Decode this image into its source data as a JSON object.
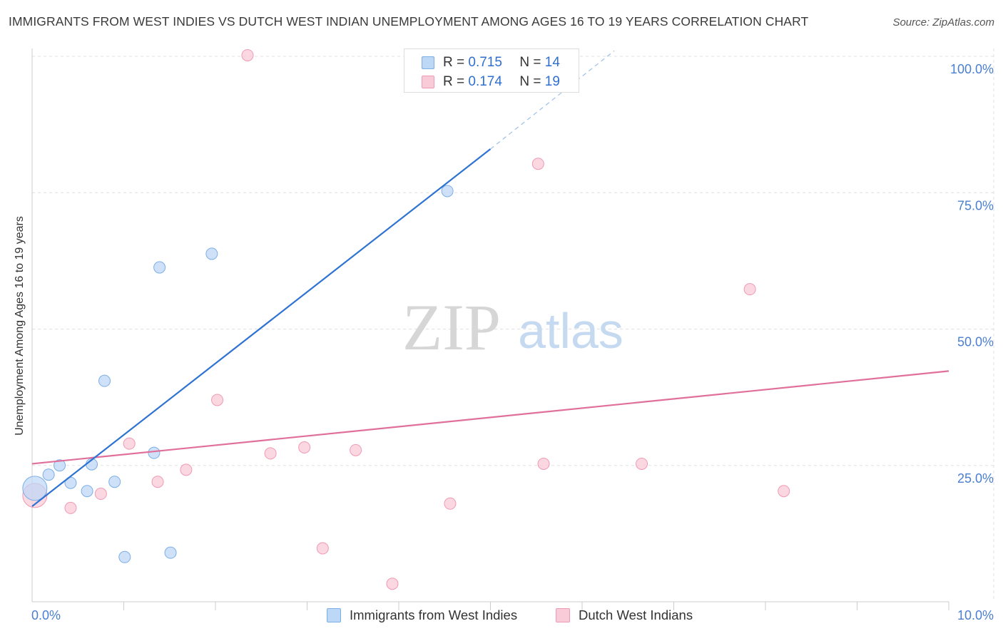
{
  "title": "IMMIGRANTS FROM WEST INDIES VS DUTCH WEST INDIAN UNEMPLOYMENT AMONG AGES 16 TO 19 YEARS CORRELATION CHART",
  "source": "Source: ZipAtlas.com",
  "watermark": {
    "zip": "ZIP",
    "atlas": "atlas"
  },
  "legend": {
    "series1": {
      "r_label": "R = ",
      "r_value": "0.715",
      "n_label": "N = ",
      "n_value": "14"
    },
    "series2": {
      "r_label": "R = ",
      "r_value": "0.174",
      "n_label": "N = ",
      "n_value": "19"
    }
  },
  "colors": {
    "blue_fill": "#bdd7f7",
    "blue_stroke": "#7baee6",
    "blue_line": "#2e72d2",
    "pink_fill": "#f9cad8",
    "pink_stroke": "#ef9ab4",
    "pink_line": "#e0709a",
    "tick_text": "#4a7fd0",
    "grid": "#e0e0e0"
  },
  "chart_data": {
    "type": "scatter",
    "title": "IMMIGRANTS FROM WEST INDIES VS DUTCH WEST INDIAN UNEMPLOYMENT AMONG AGES 16 TO 19 YEARS CORRELATION CHART",
    "xlabel": "",
    "ylabel": "Unemployment Among Ages 16 to 19 years",
    "xlim": [
      0,
      10
    ],
    "ylim": [
      0,
      100
    ],
    "x_tick_labels": [
      "0.0%",
      "10.0%"
    ],
    "y_ticks": [
      25,
      50,
      75,
      100
    ],
    "y_tick_labels": [
      "25.0%",
      "50.0%",
      "75.0%",
      "100.0%"
    ],
    "grid": true,
    "series": [
      {
        "name": "Immigrants from West Indies",
        "r": 0.715,
        "n": 14,
        "points": [
          {
            "x": 0.03,
            "y": 20.8,
            "big": true
          },
          {
            "x": 0.18,
            "y": 23.3
          },
          {
            "x": 0.3,
            "y": 25.0
          },
          {
            "x": 0.42,
            "y": 21.8
          },
          {
            "x": 0.6,
            "y": 20.3
          },
          {
            "x": 0.65,
            "y": 25.2
          },
          {
            "x": 0.79,
            "y": 40.5
          },
          {
            "x": 0.9,
            "y": 22.0
          },
          {
            "x": 1.01,
            "y": 8.2
          },
          {
            "x": 1.33,
            "y": 27.3
          },
          {
            "x": 1.39,
            "y": 61.3
          },
          {
            "x": 1.51,
            "y": 9.0
          },
          {
            "x": 1.96,
            "y": 63.8
          },
          {
            "x": 4.53,
            "y": 75.3
          }
        ],
        "trend": {
          "x1": 0.0,
          "y1": 17.5,
          "x2": 5.0,
          "y2": 83.0,
          "dash_to_x": 6.35,
          "dash_to_y": 101.0
        }
      },
      {
        "name": "Dutch West Indians",
        "r": 0.174,
        "n": 19,
        "points": [
          {
            "x": 0.03,
            "y": 19.5,
            "big": true
          },
          {
            "x": 0.42,
            "y": 17.2
          },
          {
            "x": 0.75,
            "y": 19.8
          },
          {
            "x": 1.06,
            "y": 29.0
          },
          {
            "x": 1.37,
            "y": 22.0
          },
          {
            "x": 1.68,
            "y": 24.2
          },
          {
            "x": 2.02,
            "y": 37.0
          },
          {
            "x": 2.35,
            "y": 100.2
          },
          {
            "x": 2.6,
            "y": 27.2
          },
          {
            "x": 2.97,
            "y": 28.3
          },
          {
            "x": 3.17,
            "y": 9.8
          },
          {
            "x": 3.53,
            "y": 27.8
          },
          {
            "x": 3.93,
            "y": 3.3
          },
          {
            "x": 4.56,
            "y": 18.0
          },
          {
            "x": 5.52,
            "y": 80.3
          },
          {
            "x": 5.58,
            "y": 25.3
          },
          {
            "x": 6.65,
            "y": 25.3
          },
          {
            "x": 7.83,
            "y": 57.3
          },
          {
            "x": 8.2,
            "y": 20.3
          }
        ],
        "trend": {
          "x1": 0.0,
          "y1": 25.3,
          "x2": 10.0,
          "y2": 42.3
        }
      }
    ]
  }
}
